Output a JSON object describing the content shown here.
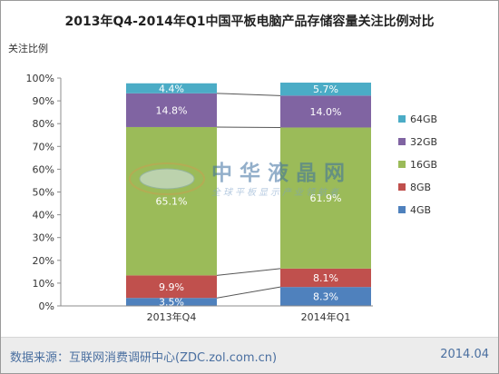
{
  "title": "2013年Q4-2014年Q1中国平板电脑产品存储容量关注比例对比",
  "ylabel": "关注比例",
  "footer": {
    "source": "数据来源：互联网消费调研中心(ZDC.zol.com.cn)",
    "date": "2014.04"
  },
  "watermark": {
    "name": "中华液晶网",
    "slogan": "全球平板显示产业领航者",
    "logo_text": "FPDisplay"
  },
  "colors": {
    "4GB": "#4f81bd",
    "8GB": "#c0504d",
    "16GB": "#9bbb59",
    "32GB": "#8064a2",
    "64GB": "#4bacc6"
  },
  "chart_data": {
    "type": "bar",
    "stacked": true,
    "percent": true,
    "categories": [
      "2013年Q4",
      "2014年Q1"
    ],
    "ylim": [
      0,
      100
    ],
    "yticks": [
      "0%",
      "10%",
      "20%",
      "30%",
      "40%",
      "50%",
      "60%",
      "70%",
      "80%",
      "90%",
      "100%"
    ],
    "series": [
      {
        "name": "4GB",
        "values": [
          3.5,
          8.3
        ],
        "labels": [
          "3.5%",
          "8.3%"
        ]
      },
      {
        "name": "8GB",
        "values": [
          9.9,
          8.1
        ],
        "labels": [
          "9.9%",
          "8.1%"
        ]
      },
      {
        "name": "16GB",
        "values": [
          65.1,
          61.9
        ],
        "labels": [
          "65.1%",
          "61.9%"
        ]
      },
      {
        "name": "32GB",
        "values": [
          14.8,
          14.0
        ],
        "labels": [
          "14.8%",
          "14.0%"
        ]
      },
      {
        "name": "64GB",
        "values": [
          4.4,
          5.7
        ],
        "labels": [
          "4.4%",
          "5.7%"
        ]
      }
    ],
    "legend": {
      "placement": "right",
      "order": [
        "64GB",
        "32GB",
        "16GB",
        "8GB",
        "4GB"
      ]
    },
    "grid": false,
    "series_lines": true
  }
}
